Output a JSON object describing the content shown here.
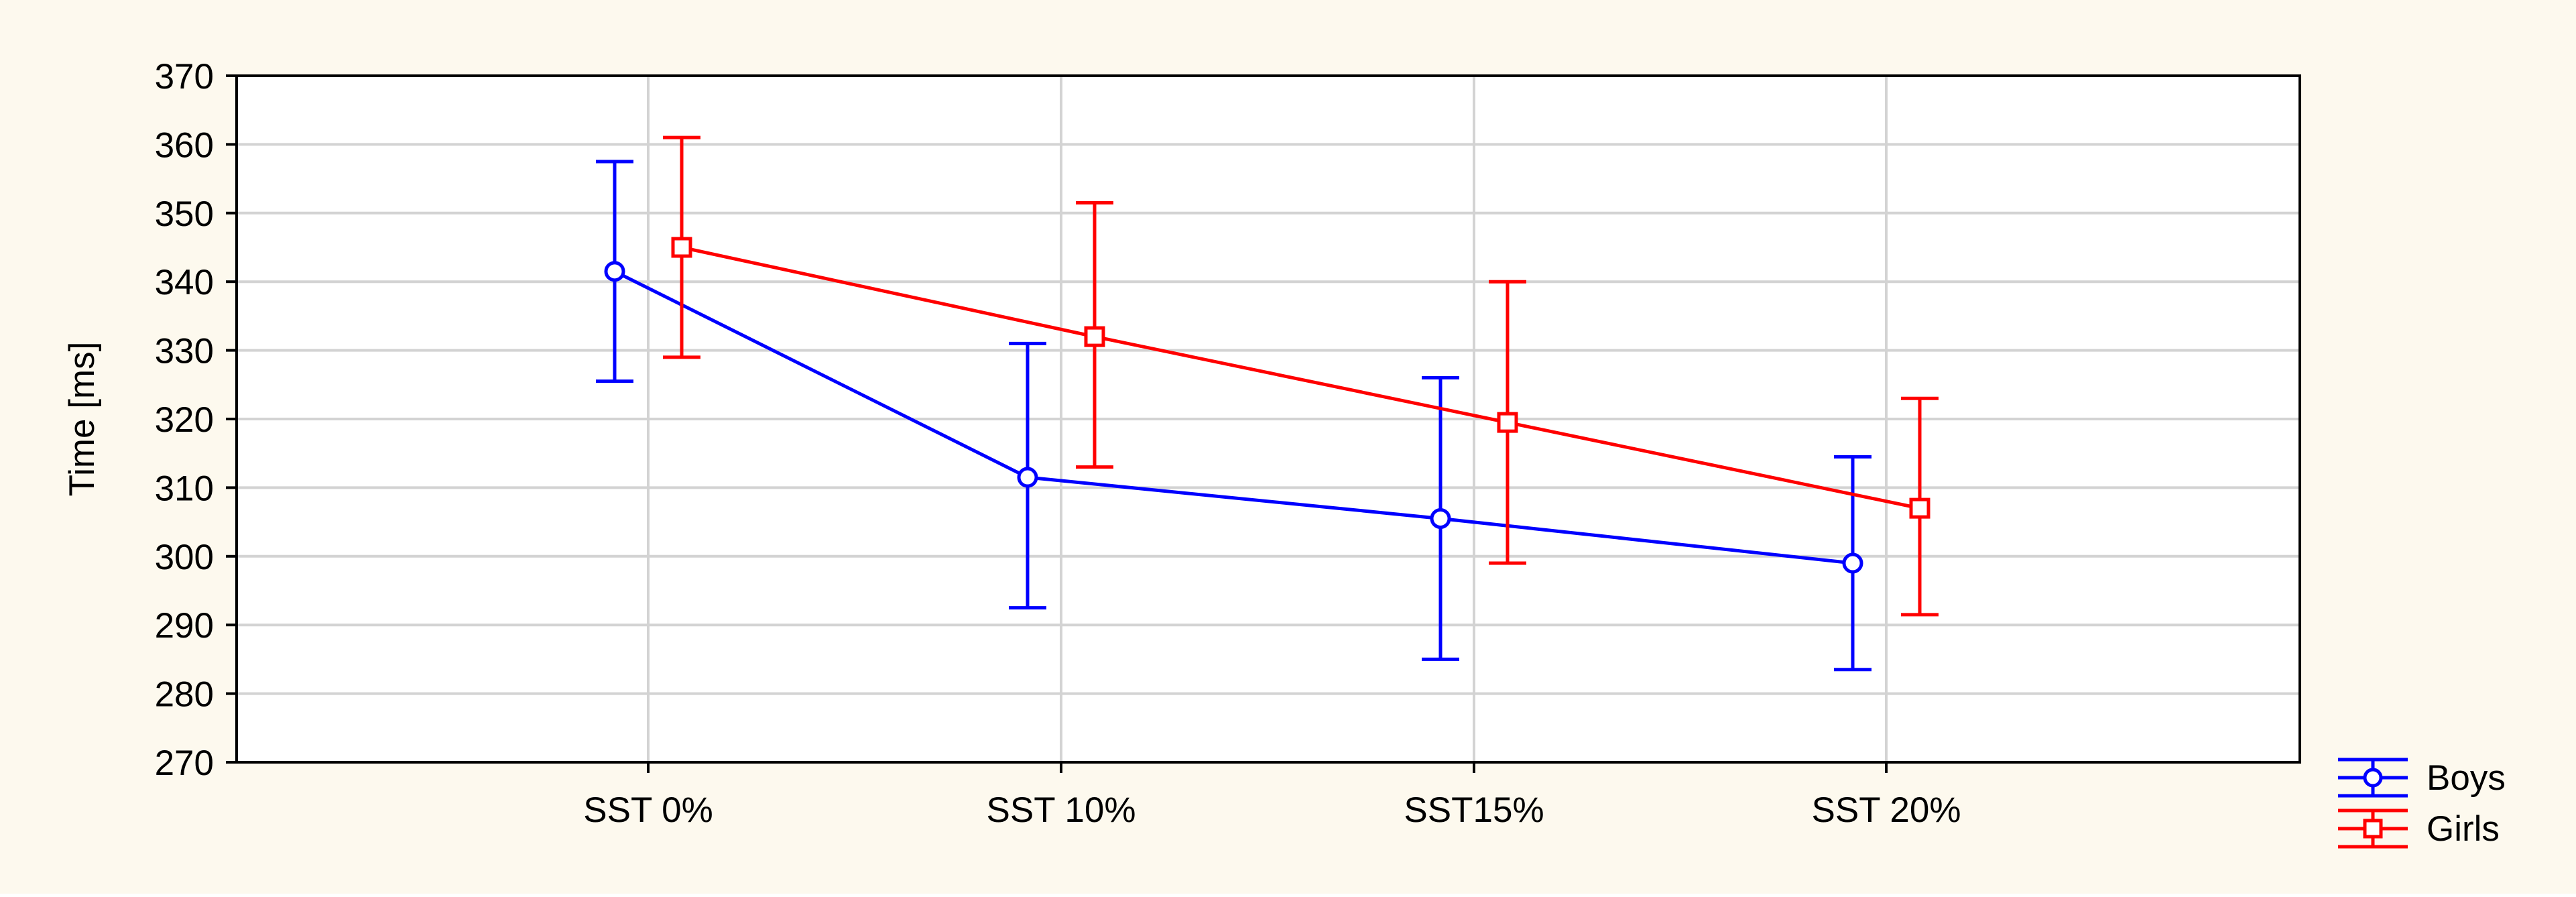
{
  "chart_data": {
    "type": "line",
    "ylabel": "Time [ms]",
    "xlabel": "",
    "title": "",
    "ylim": [
      270,
      370
    ],
    "yticks": [
      270,
      280,
      290,
      300,
      310,
      320,
      330,
      340,
      350,
      360,
      370
    ],
    "categories": [
      "SST 0%",
      "SST 10%",
      "SST15%",
      "SST 20%"
    ],
    "grid": true,
    "legend_position": "bottom-right, outside plot",
    "error_bars": true,
    "series": [
      {
        "name": "Boys",
        "color": "#0000ff",
        "marker": "circle",
        "values": [
          341.5,
          311.5,
          305.5,
          299
        ],
        "lower": [
          325.5,
          292.5,
          285,
          283.5
        ],
        "upper": [
          357.5,
          331,
          326,
          314.5
        ]
      },
      {
        "name": "Girls",
        "color": "#ff0000",
        "marker": "square",
        "values": [
          345,
          332,
          319.5,
          307
        ],
        "lower": [
          329,
          313,
          299,
          291.5
        ],
        "upper": [
          361,
          351.5,
          340,
          323
        ]
      }
    ]
  },
  "colors": {
    "background": "#fdf9ee",
    "plot_background": "#ffffff",
    "grid": "#d3d3d3",
    "axis": "#000000"
  }
}
